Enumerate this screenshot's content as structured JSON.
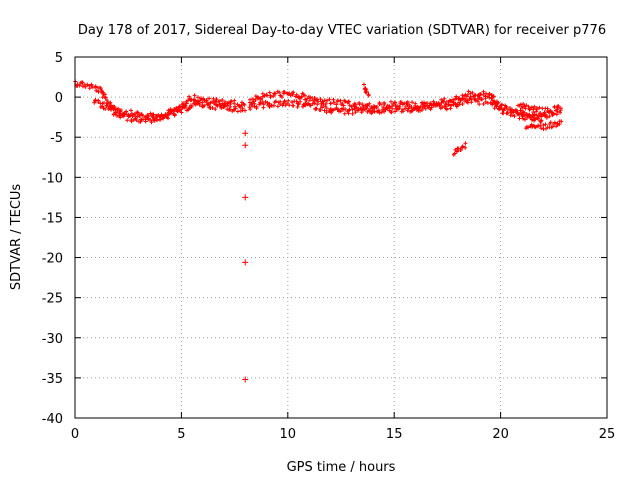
{
  "chart_data": {
    "type": "scatter",
    "title": "Day 178 of 2017, Sidereal Day-to-day VTEC variation (SDTVAR) for receiver p776",
    "xlabel": "GPS time / hours",
    "ylabel": "SDTVAR / TECUs",
    "xlim": [
      0,
      25
    ],
    "ylim": [
      -40,
      5
    ],
    "xticks": [
      0,
      5,
      10,
      15,
      20,
      25
    ],
    "yticks": [
      5,
      0,
      -5,
      -10,
      -15,
      -20,
      -25,
      -30,
      -35,
      -40
    ],
    "grid": true,
    "marker": "+",
    "series": [
      {
        "name": "SDTVAR",
        "color": "#ff0000",
        "tracks": [
          [
            [
              0.0,
              1.8
            ],
            [
              0.5,
              1.5
            ],
            [
              0.9,
              1.2
            ],
            [
              1.2,
              0.8
            ],
            [
              1.5,
              -0.5
            ],
            [
              1.8,
              -1.2
            ],
            [
              2.2,
              -1.8
            ],
            [
              2.6,
              -2.0
            ],
            [
              3.0,
              -2.2
            ],
            [
              3.5,
              -2.4
            ],
            [
              4.0,
              -2.5
            ],
            [
              4.5,
              -1.8
            ],
            [
              5.0,
              -1.2
            ],
            [
              5.3,
              -0.3
            ],
            [
              5.6,
              0.0
            ],
            [
              6.0,
              -0.5
            ],
            [
              6.5,
              -0.5
            ],
            [
              7.0,
              -0.6
            ],
            [
              7.5,
              -0.8
            ],
            [
              8.0,
              -1.0
            ]
          ],
          [
            [
              0.9,
              -0.5
            ],
            [
              1.3,
              -1.0
            ],
            [
              1.6,
              -1.5
            ],
            [
              2.0,
              -2.2
            ],
            [
              2.5,
              -2.6
            ],
            [
              3.0,
              -2.8
            ],
            [
              3.5,
              -2.8
            ],
            [
              4.0,
              -2.6
            ],
            [
              4.5,
              -2.2
            ],
            [
              5.0,
              -1.7
            ],
            [
              5.5,
              -1.0
            ],
            [
              6.0,
              -0.9
            ],
            [
              6.5,
              -1.1
            ],
            [
              7.0,
              -1.3
            ],
            [
              7.5,
              -1.4
            ],
            [
              8.0,
              -1.6
            ]
          ],
          [
            [
              8.2,
              -0.5
            ],
            [
              8.6,
              0.0
            ],
            [
              9.0,
              0.2
            ],
            [
              9.5,
              0.4
            ],
            [
              10.0,
              0.3
            ],
            [
              10.5,
              0.2
            ],
            [
              11.0,
              -0.2
            ],
            [
              11.5,
              -0.5
            ],
            [
              12.0,
              -0.6
            ],
            [
              12.5,
              -0.7
            ],
            [
              13.0,
              -1.0
            ],
            [
              13.5,
              -1.1
            ],
            [
              14.0,
              -1.2
            ],
            [
              14.5,
              -1.0
            ],
            [
              15.0,
              -0.9
            ],
            [
              15.5,
              -0.9
            ],
            [
              16.0,
              -1.0
            ],
            [
              16.5,
              -1.0
            ],
            [
              17.0,
              -0.7
            ],
            [
              17.5,
              -0.5
            ],
            [
              18.0,
              -0.2
            ],
            [
              18.5,
              0.4
            ],
            [
              19.0,
              0.2
            ],
            [
              19.5,
              0.4
            ],
            [
              19.8,
              -0.5
            ],
            [
              20.0,
              -1.2
            ],
            [
              20.5,
              -1.6
            ],
            [
              21.0,
              -2.1
            ],
            [
              21.5,
              -2.5
            ],
            [
              22.0,
              -2.4
            ],
            [
              22.5,
              -2.0
            ],
            [
              22.9,
              -1.7
            ]
          ],
          [
            [
              8.2,
              -1.2
            ],
            [
              9.0,
              -0.9
            ],
            [
              10.0,
              -0.8
            ],
            [
              11.0,
              -1.0
            ],
            [
              12.0,
              -1.6
            ],
            [
              13.0,
              -1.8
            ],
            [
              14.0,
              -1.7
            ],
            [
              15.0,
              -1.6
            ],
            [
              16.0,
              -1.5
            ],
            [
              17.0,
              -1.1
            ],
            [
              17.5,
              -1.3
            ],
            [
              18.0,
              -0.8
            ],
            [
              18.5,
              -0.4
            ],
            [
              19.0,
              -0.6
            ],
            [
              19.5,
              -0.4
            ],
            [
              20.0,
              -1.6
            ],
            [
              21.0,
              -2.4
            ],
            [
              22.0,
              -2.8
            ]
          ],
          [
            [
              20.8,
              -1.0
            ],
            [
              21.5,
              -1.5
            ],
            [
              22.0,
              -1.8
            ],
            [
              22.5,
              -1.6
            ],
            [
              22.8,
              -1.3
            ]
          ],
          [
            [
              21.2,
              -3.6
            ],
            [
              21.7,
              -3.7
            ],
            [
              22.2,
              -3.6
            ],
            [
              22.6,
              -3.3
            ],
            [
              22.9,
              -2.9
            ]
          ],
          [
            [
              17.8,
              -7.0
            ],
            [
              18.0,
              -6.6
            ],
            [
              18.2,
              -6.2
            ],
            [
              18.4,
              -6.0
            ]
          ],
          [
            [
              13.6,
              1.5
            ],
            [
              13.7,
              0.8
            ],
            [
              13.8,
              0.3
            ]
          ]
        ],
        "outliers": [
          [
            8.0,
            -4.5
          ],
          [
            8.0,
            -6.0
          ],
          [
            8.0,
            -12.5
          ],
          [
            8.0,
            -20.6
          ],
          [
            8.0,
            -35.2
          ]
        ]
      }
    ]
  }
}
